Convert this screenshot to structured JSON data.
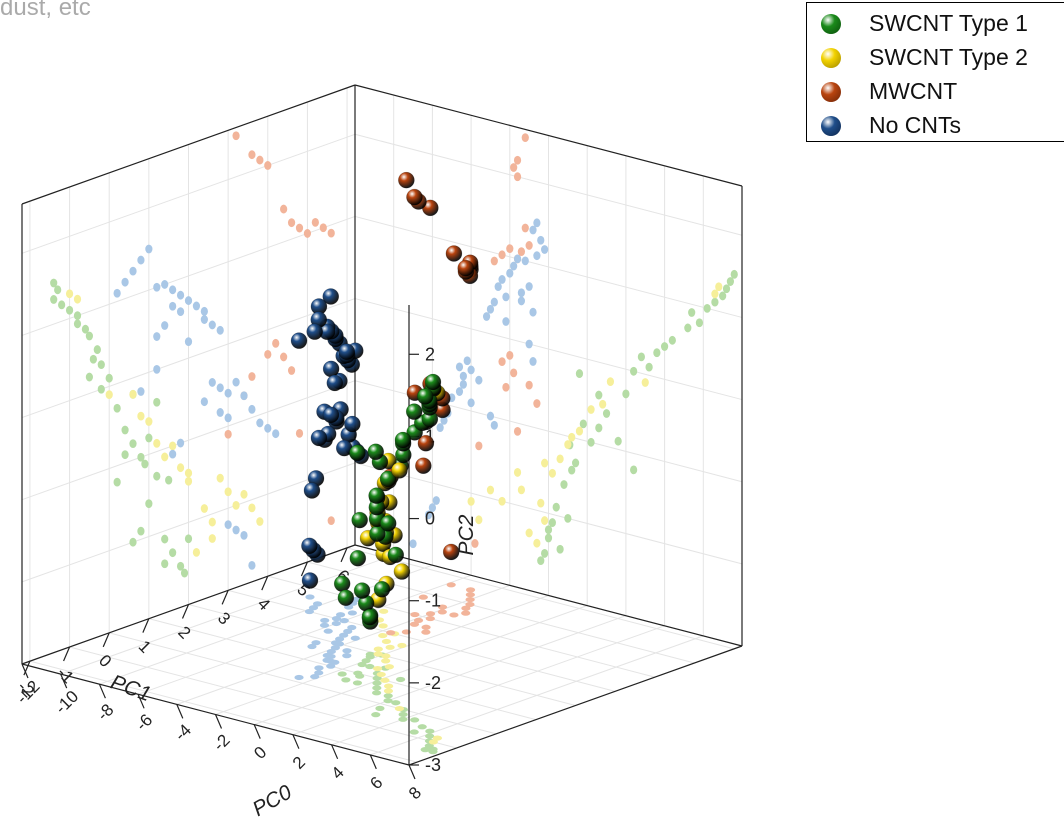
{
  "caption": "dust, etc",
  "chart_data": {
    "type": "scatter",
    "dimensions": "3d",
    "axes": {
      "x": {
        "label": "PC1",
        "ticks": [
          -2,
          -1,
          0,
          1,
          2,
          3,
          4,
          5,
          6
        ]
      },
      "y": {
        "label": "PC0",
        "ticks": [
          -12,
          -10,
          -8,
          -6,
          -4,
          -2,
          0,
          2,
          4,
          6,
          8
        ]
      },
      "z": {
        "label": "PC2",
        "ticks": [
          -3,
          -2,
          -1,
          0,
          1,
          2
        ]
      }
    },
    "xlim": [
      -2.2,
      6.2
    ],
    "ylim": [
      -12,
      8
    ],
    "zlim": [
      -3,
      2.6
    ],
    "grid": true,
    "projections": [
      "back-wall",
      "side-wall",
      "floor"
    ],
    "legend": {
      "placement": "top-right"
    },
    "series": [
      {
        "name": "SWCNT Type 1",
        "color": "#1a8a1a",
        "proj_color": "#b5dca5",
        "points": [
          [
            -1.4,
            7.6,
            1.5
          ],
          [
            -1.3,
            7.4,
            1.4
          ],
          [
            -1.4,
            7.2,
            1.3
          ],
          [
            -1.2,
            7.0,
            1.2
          ],
          [
            -1.0,
            6.6,
            1.1
          ],
          [
            -0.8,
            6.2,
            1.0
          ],
          [
            -0.6,
            5.8,
            0.8
          ],
          [
            -0.5,
            5.2,
            0.7
          ],
          [
            -0.3,
            4.4,
            0.5
          ],
          [
            -0.2,
            3.6,
            0.3
          ],
          [
            -0.5,
            2.8,
            0.2
          ],
          [
            0.0,
            3.2,
            0.1
          ],
          [
            -0.2,
            2.4,
            0.0
          ],
          [
            0.2,
            2.0,
            -0.3
          ],
          [
            0.4,
            1.0,
            -0.6
          ],
          [
            0.6,
            0.6,
            -0.8
          ],
          [
            0.8,
            0.2,
            -1.0
          ],
          [
            1.0,
            -0.2,
            -0.8
          ],
          [
            1.2,
            -0.6,
            -1.3
          ],
          [
            1.0,
            -1.2,
            -1.6
          ],
          [
            0.8,
            -1.6,
            -1.9
          ],
          [
            0.6,
            -1.0,
            -2.0
          ],
          [
            1.4,
            -1.8,
            -2.1
          ],
          [
            1.6,
            -2.0,
            -2.3
          ],
          [
            1.8,
            -2.2,
            -2.5
          ],
          [
            1.9,
            -2.4,
            -2.6
          ],
          [
            2.0,
            -2.0,
            -2.2
          ],
          [
            1.5,
            -0.8,
            -1.4
          ],
          [
            1.2,
            0.6,
            -0.4
          ],
          [
            0.4,
            1.6,
            -0.9
          ],
          [
            0.2,
            2.4,
            -1.2
          ],
          [
            0.9,
            -0.9,
            -1.1
          ],
          [
            -0.8,
            5.4,
            0.9
          ],
          [
            -0.4,
            4.0,
            0.4
          ],
          [
            0.6,
            -0.4,
            -0.2
          ],
          [
            1.4,
            -1.4,
            -2.4
          ]
        ]
      },
      {
        "name": "SWCNT Type 2",
        "color": "#f2d200",
        "proj_color": "#f6ef9a",
        "points": [
          [
            -1.0,
            6.8,
            1.3
          ],
          [
            -0.8,
            6.6,
            1.2
          ],
          [
            0.0,
            3.0,
            -0.1
          ],
          [
            0.8,
            0.8,
            -0.5
          ],
          [
            1.0,
            0.2,
            -0.6
          ],
          [
            1.6,
            -0.8,
            -1.0
          ],
          [
            1.8,
            -1.4,
            -1.3
          ],
          [
            2.0,
            -1.8,
            -1.5
          ],
          [
            2.4,
            -2.4,
            -1.9
          ],
          [
            2.6,
            -2.2,
            -2.1
          ],
          [
            2.8,
            -3.6,
            -1.6
          ],
          [
            3.0,
            -3.4,
            -1.8
          ],
          [
            3.2,
            -4.4,
            -2.0
          ],
          [
            3.4,
            -5.0,
            -1.9
          ],
          [
            3.6,
            -6.0,
            -2.1
          ],
          [
            2.6,
            -3.0,
            -2.3
          ],
          [
            2.2,
            -2.6,
            -2.4
          ],
          [
            3.8,
            -5.6,
            -2.3
          ],
          [
            1.2,
            -0.4,
            -0.9
          ],
          [
            1.4,
            -1.0,
            -1.1
          ],
          [
            0.6,
            1.2,
            -0.2
          ],
          [
            2.0,
            -2.2,
            -1.4
          ]
        ]
      },
      {
        "name": "MWCNT",
        "color": "#b9440f",
        "proj_color": "#f2b49a",
        "points": [
          [
            3.2,
            -3.2,
            2.5
          ],
          [
            3.6,
            -3.6,
            2.2
          ],
          [
            3.8,
            -3.8,
            2.1
          ],
          [
            4.0,
            -3.6,
            2.0
          ],
          [
            4.4,
            -3.2,
            1.4
          ],
          [
            4.6,
            -3.0,
            1.2
          ],
          [
            4.8,
            -3.4,
            1.1
          ],
          [
            5.0,
            -3.6,
            1.0
          ],
          [
            5.2,
            -4.0,
            1.1
          ],
          [
            5.4,
            -4.4,
            1.0
          ],
          [
            5.6,
            -4.8,
            0.9
          ],
          [
            4.2,
            -4.0,
            -0.2
          ],
          [
            4.4,
            -3.8,
            -0.4
          ],
          [
            4.6,
            -4.2,
            -0.6
          ],
          [
            3.6,
            -3.0,
            -0.5
          ],
          [
            3.4,
            -2.6,
            -0.7
          ],
          [
            4.8,
            -5.6,
            -1.4
          ],
          [
            5.6,
            -5.8,
            -2.6
          ],
          [
            3.0,
            -3.6,
            -1.1
          ],
          [
            4.0,
            -4.4,
            -0.3
          ]
        ]
      },
      {
        "name": "No CNTs",
        "color": "#1f4e8a",
        "proj_color": "#a9c7e6",
        "points": [
          [
            1.0,
            -2.6,
            1.5
          ],
          [
            0.8,
            -2.8,
            1.4
          ],
          [
            0.6,
            -2.4,
            1.3
          ],
          [
            0.4,
            -2.2,
            1.2
          ],
          [
            0.2,
            -2.6,
            1.1
          ],
          [
            1.2,
            -3.2,
            1.0
          ],
          [
            1.4,
            -3.6,
            1.0
          ],
          [
            1.6,
            -3.8,
            0.9
          ],
          [
            1.8,
            -4.0,
            0.8
          ],
          [
            2.0,
            -4.4,
            0.7
          ],
          [
            2.2,
            -4.6,
            0.6
          ],
          [
            2.4,
            -4.8,
            0.4
          ],
          [
            2.6,
            -5.0,
            0.3
          ],
          [
            2.8,
            -5.2,
            0.2
          ],
          [
            2.4,
            -4.2,
            0.5
          ],
          [
            1.8,
            -3.4,
            0.6
          ],
          [
            1.6,
            -3.0,
            0.7
          ],
          [
            1.4,
            -3.4,
            0.5
          ],
          [
            1.2,
            -2.8,
            0.4
          ],
          [
            2.0,
            -4.2,
            0.2
          ],
          [
            1.2,
            -3.0,
            0.0
          ],
          [
            0.8,
            -2.8,
            -0.2
          ],
          [
            2.6,
            -6.2,
            -0.4
          ],
          [
            2.8,
            -6.0,
            -0.5
          ],
          [
            3.0,
            -6.4,
            -0.6
          ],
          [
            3.2,
            -6.6,
            -0.5
          ],
          [
            3.4,
            -6.4,
            -0.7
          ],
          [
            3.0,
            -6.0,
            -0.9
          ],
          [
            2.8,
            -6.6,
            -0.8
          ],
          [
            3.6,
            -7.0,
            -0.9
          ],
          [
            3.8,
            -7.2,
            -1.1
          ],
          [
            1.8,
            -5.0,
            -1.0
          ],
          [
            1.6,
            -4.8,
            -1.1
          ],
          [
            4.0,
            -7.4,
            -1.2
          ],
          [
            4.2,
            -7.6,
            -1.3
          ],
          [
            2.4,
            -5.6,
            -0.6
          ],
          [
            3.0,
            -7.8,
            -2.2
          ],
          [
            3.2,
            -8.0,
            -2.3
          ],
          [
            3.4,
            -8.2,
            -2.4
          ],
          [
            3.6,
            -9.0,
            -2.8
          ]
        ]
      }
    ]
  }
}
